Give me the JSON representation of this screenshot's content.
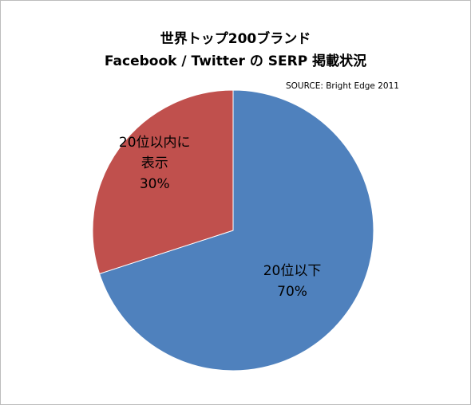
{
  "chart_data": {
    "type": "pie",
    "title_lines": [
      "世界トップ200ブランド",
      "Facebook / Twitter の SERP 掲載状況"
    ],
    "source": "SOURCE: Bright Edge 2011",
    "slices": [
      {
        "label_lines": [
          "20位以下"
        ],
        "value": 70,
        "value_label": "70%",
        "color": "#4f81bd"
      },
      {
        "label_lines": [
          "20位以内に",
          "表示"
        ],
        "value": 30,
        "value_label": "30%",
        "color": "#c0504d"
      }
    ]
  }
}
